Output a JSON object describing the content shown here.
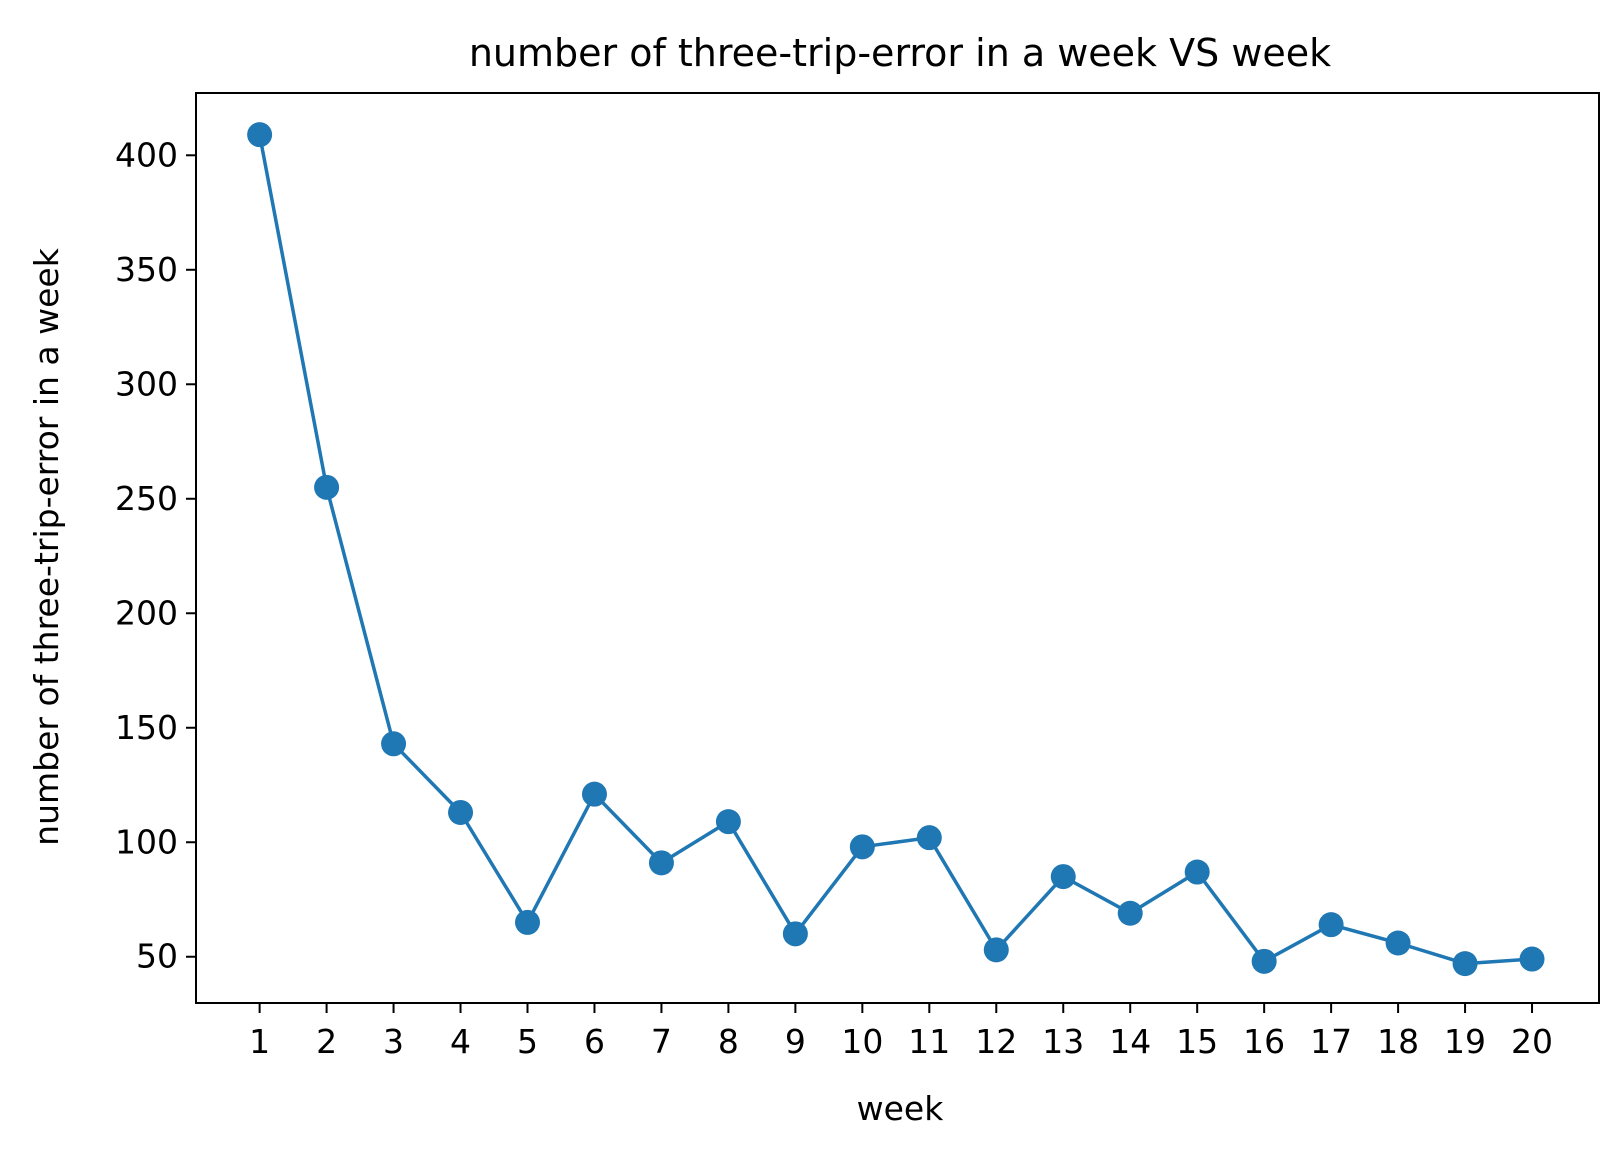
{
  "chart_data": {
    "type": "line",
    "title": "number of three-trip-error in a week VS week",
    "xlabel": "week",
    "ylabel": "number of three-trip-error in a week",
    "x": [
      1,
      2,
      3,
      4,
      5,
      6,
      7,
      8,
      9,
      10,
      11,
      12,
      13,
      14,
      15,
      16,
      17,
      18,
      19,
      20
    ],
    "x_ticks": [
      "1",
      "2",
      "3",
      "4",
      "5",
      "6",
      "7",
      "8",
      "9",
      "10",
      "11",
      "12",
      "13",
      "14",
      "15",
      "16",
      "17",
      "18",
      "19",
      "20"
    ],
    "series": [
      {
        "values": [
          409,
          255,
          143,
          113,
          65,
          121,
          91,
          109,
          60,
          98,
          102,
          53,
          85,
          69,
          87,
          48,
          64,
          56,
          47,
          49
        ],
        "color": "#1f77b4",
        "marker": "circle"
      }
    ],
    "y_ticks": [
      50,
      100,
      150,
      200,
      250,
      300,
      350,
      400
    ],
    "xlim": [
      0.05,
      21.0
    ],
    "ylim": [
      29.8,
      427.2
    ],
    "grid": false,
    "legend": "none"
  }
}
